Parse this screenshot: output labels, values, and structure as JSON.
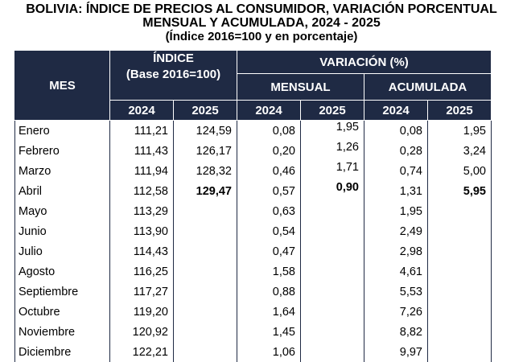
{
  "title": {
    "line1": "BOLIVIA: ÍNDICE DE PRECIOS AL CONSUMIDOR, VARIACIÓN PORCENTUAL",
    "line2": "MENSUAL Y ACUMULADA, 2024 - 2025",
    "line3": "(Índice 2016=100 y en porcentaje)"
  },
  "header": {
    "mes": "MES",
    "indice": "ÍNDICE",
    "indice_base": "(Base 2016=100)",
    "variacion": "VARIACIÓN (%)",
    "mensual": "MENSUAL",
    "acumulada": "ACUMULADA",
    "years": [
      "2024",
      "2025",
      "2024",
      "2025",
      "2024",
      "2025"
    ]
  },
  "rows": [
    {
      "mes": "Enero",
      "idx2024": "111,21",
      "idx2025": "124,59",
      "men2024": "0,08",
      "men2025": "1,95",
      "acu2024": "0,08",
      "acu2025": "1,95"
    },
    {
      "mes": "Febrero",
      "idx2024": "111,43",
      "idx2025": "126,17",
      "men2024": "0,20",
      "men2025": "1,26",
      "acu2024": "0,28",
      "acu2025": "3,24"
    },
    {
      "mes": "Marzo",
      "idx2024": "111,94",
      "idx2025": "128,32",
      "men2024": "0,46",
      "men2025": "1,71",
      "acu2024": "0,74",
      "acu2025": "5,00"
    },
    {
      "mes": "Abril",
      "idx2024": "112,58",
      "idx2025": "129,47",
      "men2024": "0,57",
      "men2025": "0,90",
      "acu2024": "1,31",
      "acu2025": "5,95"
    },
    {
      "mes": "Mayo",
      "idx2024": "113,29",
      "idx2025": "",
      "men2024": "0,63",
      "men2025": "",
      "acu2024": "1,95",
      "acu2025": ""
    },
    {
      "mes": "Junio",
      "idx2024": "113,90",
      "idx2025": "",
      "men2024": "0,54",
      "men2025": "",
      "acu2024": "2,49",
      "acu2025": ""
    },
    {
      "mes": "Julio",
      "idx2024": "114,43",
      "idx2025": "",
      "men2024": "0,47",
      "men2025": "",
      "acu2024": "2,98",
      "acu2025": ""
    },
    {
      "mes": "Agosto",
      "idx2024": "116,25",
      "idx2025": "",
      "men2024": "1,58",
      "men2025": "",
      "acu2024": "4,61",
      "acu2025": ""
    },
    {
      "mes": "Septiembre",
      "idx2024": "117,27",
      "idx2025": "",
      "men2024": "0,88",
      "men2025": "",
      "acu2024": "5,53",
      "acu2025": ""
    },
    {
      "mes": "Octubre",
      "idx2024": "119,20",
      "idx2025": "",
      "men2024": "1,64",
      "men2025": "",
      "acu2024": "7,26",
      "acu2025": ""
    },
    {
      "mes": "Noviembre",
      "idx2024": "120,92",
      "idx2025": "",
      "men2024": "1,45",
      "men2025": "",
      "acu2024": "8,82",
      "acu2025": ""
    },
    {
      "mes": "Diciembre",
      "idx2024": "122,21",
      "idx2025": "",
      "men2024": "1,06",
      "men2025": "",
      "acu2024": "9,97",
      "acu2025": ""
    }
  ],
  "colors": {
    "header_bg": "#1f2a44",
    "header_text": "#ffffff"
  }
}
